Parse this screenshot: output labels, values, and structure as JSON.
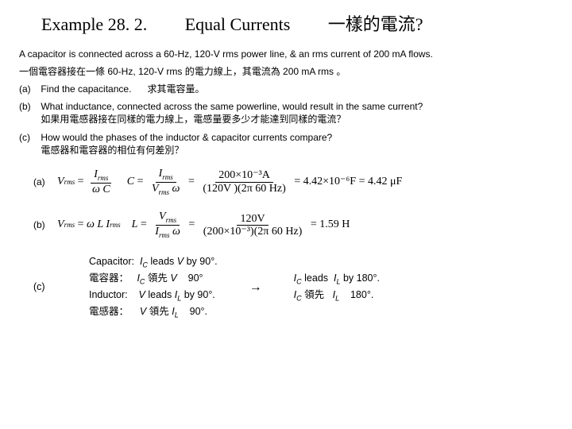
{
  "title": {
    "ex": "Example 28. 2.",
    "en": "Equal Currents",
    "zh": "一樣的電流?"
  },
  "intro_en": "A capacitor is connected across a 60-Hz, 120-V rms power line, & an rms current of 200 mA flows.",
  "intro_zh": "一個電容器接在一條 60-Hz, 120-V rms 的電力線上，其電流為 200 mA rms 。",
  "qa": {
    "a_label": "(a)",
    "a_en": "Find the capacitance.",
    "a_zh": "求其電容量。",
    "b_label": "(b)",
    "b_en": "What inductance, connected across the same powerline, would result in the same current?",
    "b_zh": "如果用電感器接在同樣的電力線上，電感量要多少才能達到同樣的電流？",
    "c_label": "(c)",
    "c_en": "How would the phases of the inductor & capacitor currents compare?",
    "c_zh": "電感器和電容器的相位有何差別？"
  },
  "solA": {
    "lhs_num": "I",
    "lhs_num_sub": "rms",
    "lhs_den_a": "ω",
    "lhs_den_b": "C",
    "mid_var": "C",
    "mid_num": "I",
    "mid_num_sub": "rms",
    "mid_den_a": "V",
    "mid_den_sub": "rms",
    "mid_den_b": "ω",
    "val_num": "200×10⁻³A",
    "val_den": "(120V )(2π 60 Hz)",
    "res1": "= 4.42×10⁻⁶F = 4.42 μF",
    "Vlab": "V",
    "Vsub": "rms"
  },
  "solB": {
    "lhs_a": "ω L I",
    "lhs_sub": "rms",
    "Llab": "L",
    "num_a": "V",
    "num_sub": "rms",
    "den_a": "I",
    "den_sub": "rms",
    "den_b": "ω",
    "val_num": "120V",
    "val_den": "(200×10⁻³)(2π 60 Hz)",
    "res": "= 1.59 H",
    "Vlab": "V",
    "Vsub": "rms"
  },
  "solC": {
    "cap_en_a": "Capacitor:",
    "cap_en_b": "leads",
    "cap_en_c": "by 90°.",
    "cap_zh_a": "電容器：",
    "cap_zh_b": "領先",
    "cap_zh_c": "90°",
    "ind_en_a": "Inductor:",
    "ind_en_b": "leads",
    "ind_en_c": "by 90°.",
    "ind_zh_a": "電感器：",
    "ind_zh_b": "領先",
    "ind_zh_c": "90°.",
    "IC": "I",
    "ICs": "C",
    "V": "V",
    "IL": "I",
    "ILs": "L",
    "arrow": "→",
    "r1a": "leads",
    "r1b": "by 180°.",
    "r2a": "領先",
    "r2b": "180°."
  }
}
